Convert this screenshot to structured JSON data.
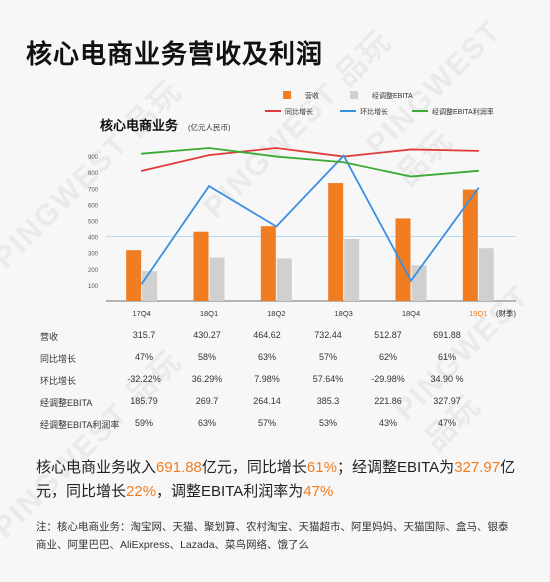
{
  "page_title": "核心电商业务营收及利润",
  "chart_data": {
    "type": "bar",
    "title": "核心电商业务",
    "unit": "(亿元人民币)",
    "categories": [
      "17Q4",
      "18Q1",
      "18Q2",
      "18Q3",
      "18Q4",
      "19Q1"
    ],
    "x_suffix": "(财季)",
    "y_ticks": [
      100,
      200,
      300,
      400,
      500,
      600,
      700,
      800,
      900
    ],
    "ylim": [
      0,
      1000
    ],
    "series": [
      {
        "name": "营收",
        "type": "bar",
        "color": "#f07d22",
        "values": [
          315.7,
          430.27,
          464.62,
          732.44,
          512.87,
          691.88
        ]
      },
      {
        "name": "经调整EBITA",
        "type": "bar",
        "color": "#d0d0d0",
        "values": [
          185.79,
          269.7,
          264.14,
          385.3,
          221.86,
          327.97
        ]
      },
      {
        "name": "同比增长",
        "type": "line",
        "color": "#e03b3b",
        "values": [
          47,
          58,
          63,
          57,
          62,
          61
        ]
      },
      {
        "name": "环比增长",
        "type": "line",
        "color": "#3b8fe0",
        "values": [
          -32.22,
          36.29,
          7.98,
          57.64,
          -29.98,
          34.9
        ]
      },
      {
        "name": "经调整EBITA利润率",
        "type": "line",
        "color": "#3aaa35",
        "values": [
          59,
          63,
          57,
          53,
          43,
          47
        ]
      }
    ],
    "highlight_category": "19Q1"
  },
  "table": {
    "rows": [
      {
        "label": "营收",
        "cells": [
          "315.7",
          "430.27",
          "464.62",
          "732.44",
          "512.87",
          "691.88"
        ]
      },
      {
        "label": "同比增长",
        "cells": [
          "47%",
          "58%",
          "63%",
          "57%",
          "62%",
          "61%"
        ]
      },
      {
        "label": "环比增长",
        "cells": [
          "-32.22%",
          "36.29%",
          "7.98%",
          "57.64%",
          "-29.98%",
          "34.90 %"
        ]
      },
      {
        "label": "经调整EBITA",
        "cells": [
          "185.79",
          "269.7",
          "264.14",
          "385.3",
          "221.86",
          "327.97"
        ]
      },
      {
        "label": "经调整EBITA利润率",
        "cells": [
          "59%",
          "63%",
          "57%",
          "53%",
          "43%",
          "47%"
        ]
      }
    ]
  },
  "summary": {
    "p1": "核心电商业务收入",
    "v1": "691.88",
    "p2": "亿元，同比增长",
    "v2": "61%",
    "p3": "；经调整EBITA为",
    "v3": "327.97",
    "p4": "亿元，同比增长",
    "v4": "22%",
    "p5": "，调整EBITA利润率为",
    "v5": "47%"
  },
  "note": "注：核心电商业务：淘宝网、天猫、聚划算、农村淘宝、天猫超市、阿里妈妈、天猫国际、盒马、银泰商业、阿里巴巴、AliExpress、Lazada、菜鸟网络、饿了么",
  "watermark": "PINGWEST 品玩"
}
